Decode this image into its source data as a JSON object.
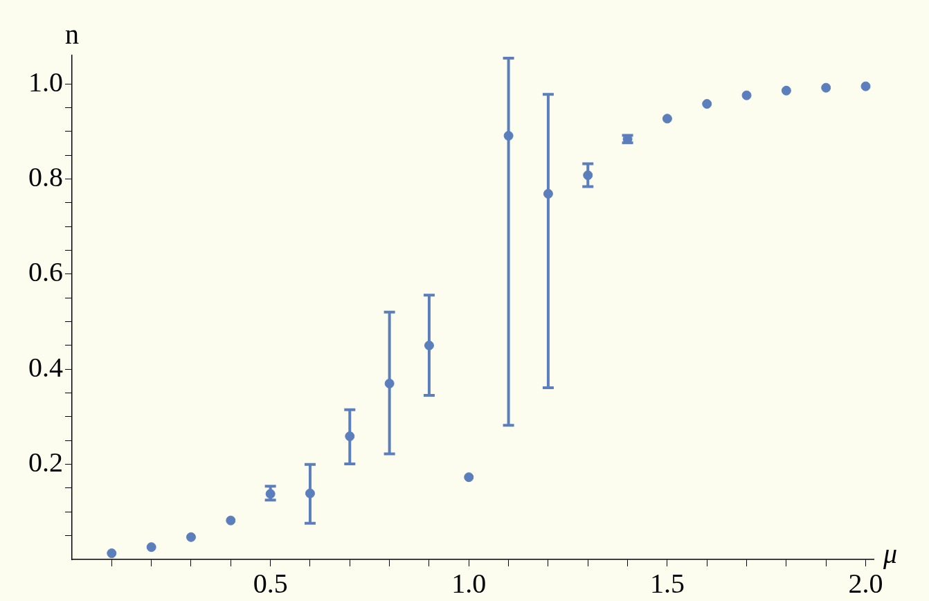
{
  "chart_data": {
    "type": "scatter",
    "xlabel": "μ",
    "ylabel": "n",
    "x": [
      0.1,
      0.2,
      0.3,
      0.4,
      0.5,
      0.6,
      0.7,
      0.8,
      0.9,
      1.0,
      1.1,
      1.2,
      1.3,
      1.4,
      1.5,
      1.6,
      1.7,
      1.8,
      1.9,
      2.0
    ],
    "series": [
      {
        "color": "#5b7fbd",
        "values": [
          0.013,
          0.026,
          0.047,
          0.082,
          0.138,
          0.139,
          0.259,
          0.37,
          0.45,
          0.173,
          0.891,
          0.769,
          0.808,
          0.884,
          0.927,
          0.958,
          0.976,
          0.986,
          0.992,
          0.995
        ],
        "errors": [
          null,
          null,
          null,
          null,
          [
            0.125,
            0.154
          ],
          [
            0.076,
            0.2
          ],
          [
            0.201,
            0.315
          ],
          [
            0.222,
            0.52
          ],
          [
            0.345,
            0.556
          ],
          null,
          [
            0.282,
            1.054
          ],
          [
            0.361,
            0.978
          ],
          [
            0.784,
            0.832
          ],
          [
            0.876,
            0.892
          ],
          null,
          null,
          null,
          null,
          null,
          null
        ]
      }
    ],
    "xlim": [
      0,
      2.02
    ],
    "ylim": [
      0,
      1.06
    ],
    "xticks": [
      {
        "value": 0.1,
        "label": null
      },
      {
        "value": 0.2,
        "label": null
      },
      {
        "value": 0.3,
        "label": null
      },
      {
        "value": 0.4,
        "label": null
      },
      0.5,
      {
        "value": 0.6,
        "label": null
      },
      {
        "value": 0.7,
        "label": null
      },
      {
        "value": 0.8,
        "label": null
      },
      {
        "value": 0.9,
        "label": null
      },
      {
        "value": 1,
        "label": "1.0"
      },
      {
        "value": 1.1,
        "label": null
      },
      {
        "value": 1.2,
        "label": null
      },
      {
        "value": 1.3,
        "label": null
      },
      {
        "value": 1.4,
        "label": null
      },
      1.5,
      {
        "value": 1.6,
        "label": null
      },
      {
        "value": 1.7,
        "label": null
      },
      {
        "value": 1.8,
        "label": null
      },
      {
        "value": 1.9,
        "label": null
      },
      {
        "value": 2,
        "label": "2.0"
      }
    ],
    "yticks": [
      {
        "value": 0.05,
        "label": null
      },
      {
        "value": 0.1,
        "label": null
      },
      {
        "value": 0.15,
        "label": null
      },
      0.2,
      {
        "value": 0.25,
        "label": null
      },
      {
        "value": 0.3,
        "label": null
      },
      {
        "value": 0.35,
        "label": null
      },
      0.4,
      {
        "value": 0.45,
        "label": null
      },
      {
        "value": 0.5,
        "label": null
      },
      {
        "value": 0.55,
        "label": null
      },
      0.6,
      {
        "value": 0.65,
        "label": null
      },
      {
        "value": 0.7,
        "label": null
      },
      {
        "value": 0.75,
        "label": null
      },
      0.8,
      {
        "value": 0.85,
        "label": null
      },
      {
        "value": 0.9,
        "label": null
      },
      {
        "value": 0.95,
        "label": null
      },
      {
        "value": 1,
        "label": "1.0"
      }
    ],
    "marker": "circle",
    "grid": false,
    "legend": false
  }
}
